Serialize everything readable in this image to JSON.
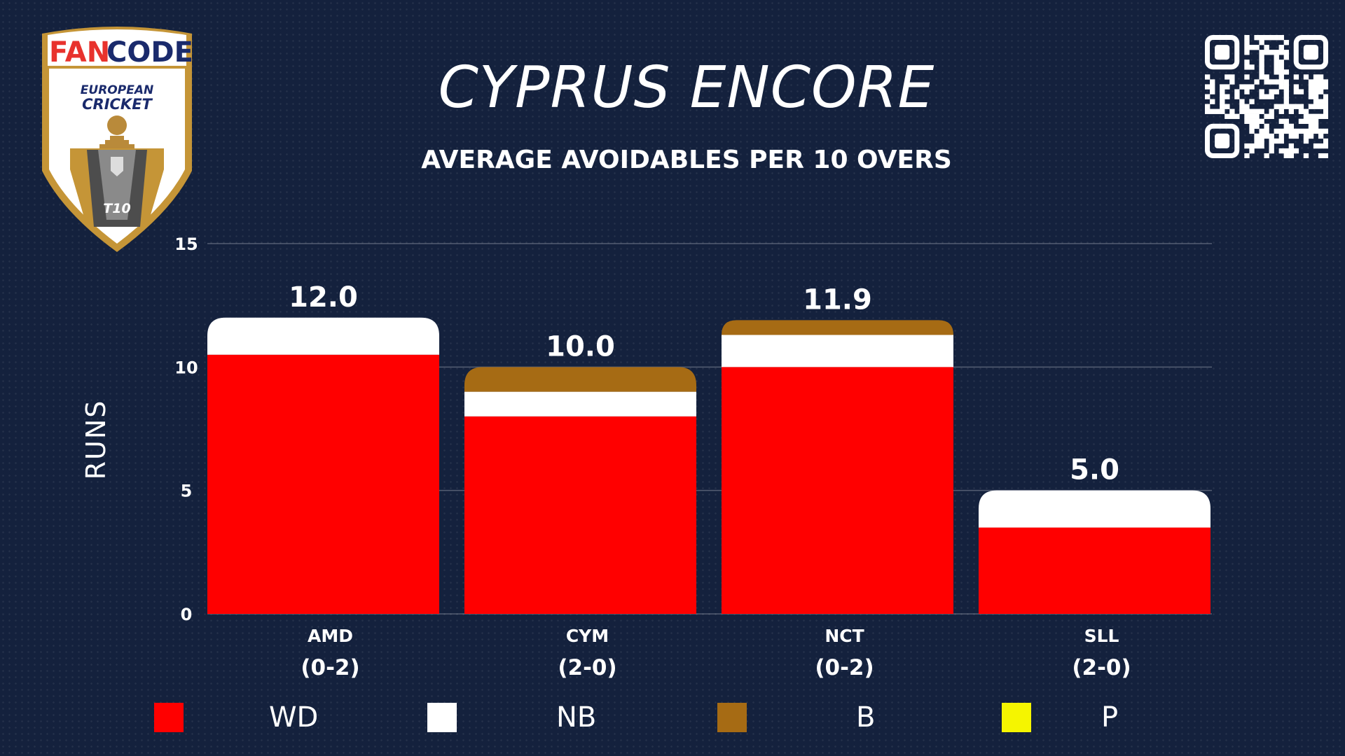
{
  "title": "CYPRUS ENCORE",
  "subtitle": "AVERAGE AVOIDABLES PER 10 OVERS",
  "logo": {
    "brand_part1": "FAN",
    "brand_part2": "CODE",
    "line1": "EUROPEAN",
    "line2": "CRICKET",
    "badge": "T10"
  },
  "colors": {
    "background": "#14213d",
    "WD": "#ff0000",
    "NB": "#ffffff",
    "B": "#a66b14",
    "P": "#f5f500",
    "gold": "#c59537"
  },
  "chart_data": {
    "type": "bar",
    "stacked": true,
    "ylabel": "RUNS",
    "xlabel": "",
    "ylim": [
      0,
      15
    ],
    "yticks": [
      0,
      5,
      10,
      15
    ],
    "grid": true,
    "legend_position": "bottom",
    "categories": [
      "AMD",
      "CYM",
      "NCT",
      "SLL"
    ],
    "records": [
      "(0-2)",
      "(2-0)",
      "(0-2)",
      "(2-0)"
    ],
    "totals": [
      "12.0",
      "10.0",
      "11.9",
      "5.0"
    ],
    "series": [
      {
        "name": "WD",
        "values": [
          10.5,
          8.0,
          10.0,
          3.5
        ]
      },
      {
        "name": "NB",
        "values": [
          1.5,
          1.0,
          1.3,
          1.5
        ]
      },
      {
        "name": "B",
        "values": [
          0.0,
          1.0,
          0.6,
          0.0
        ]
      },
      {
        "name": "P",
        "values": [
          0.0,
          0.0,
          0.0,
          0.0
        ]
      }
    ]
  }
}
